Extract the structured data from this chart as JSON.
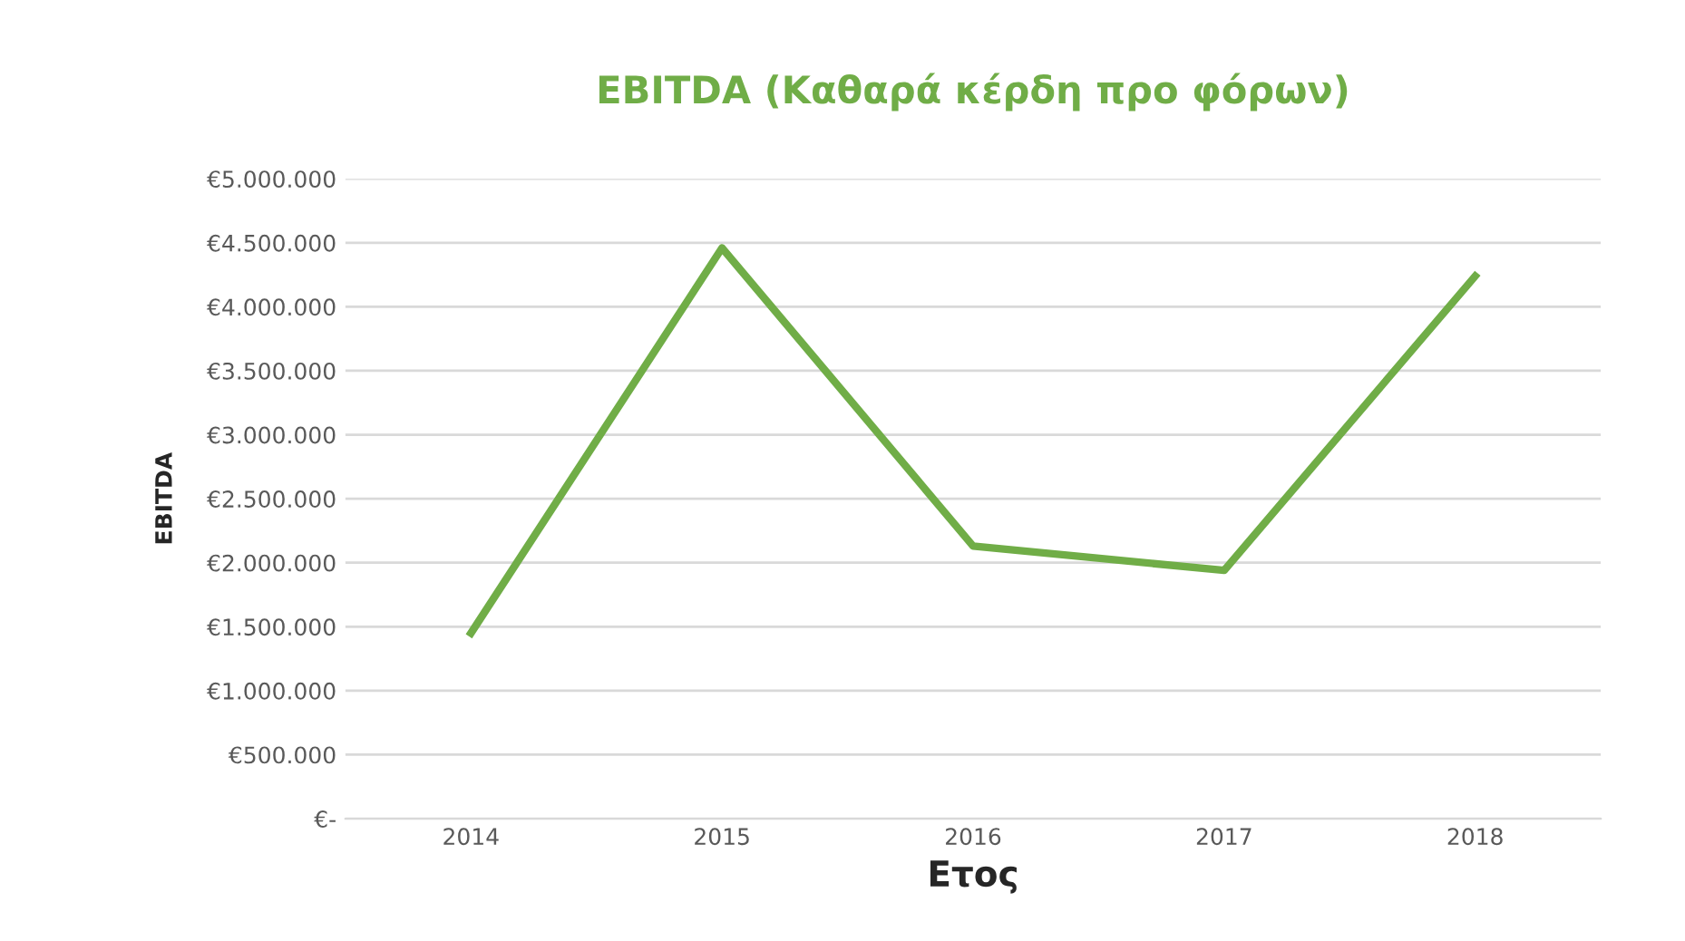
{
  "chart_data": {
    "type": "line",
    "title": "EBITDA (Καθαρά κέρδη προ φόρων)",
    "xlabel": "Ετος",
    "ylabel": "EBITDA",
    "categories": [
      "2014",
      "2015",
      "2016",
      "2017",
      "2018"
    ],
    "series": [
      {
        "color": "#70ad47",
        "values": [
          1450000,
          4460000,
          2130000,
          1940000,
          4240000
        ]
      }
    ],
    "ylim": [
      0,
      5000000
    ],
    "yticks": [
      {
        "value": 0,
        "label": "€-"
      },
      {
        "value": 500000,
        "label": "€500.000"
      },
      {
        "value": 1000000,
        "label": "€1.000.000"
      },
      {
        "value": 1500000,
        "label": "€1.500.000"
      },
      {
        "value": 2000000,
        "label": "€2.000.000"
      },
      {
        "value": 2500000,
        "label": "€2.500.000"
      },
      {
        "value": 3000000,
        "label": "€3.000.000"
      },
      {
        "value": 3500000,
        "label": "€3.500.000"
      },
      {
        "value": 4000000,
        "label": "€4.000.000"
      },
      {
        "value": 4500000,
        "label": "€4.500.000"
      },
      {
        "value": 5000000,
        "label": "€5.000.000"
      }
    ],
    "grid": "y",
    "legend": false,
    "marker": "none",
    "line_style": "solid"
  }
}
